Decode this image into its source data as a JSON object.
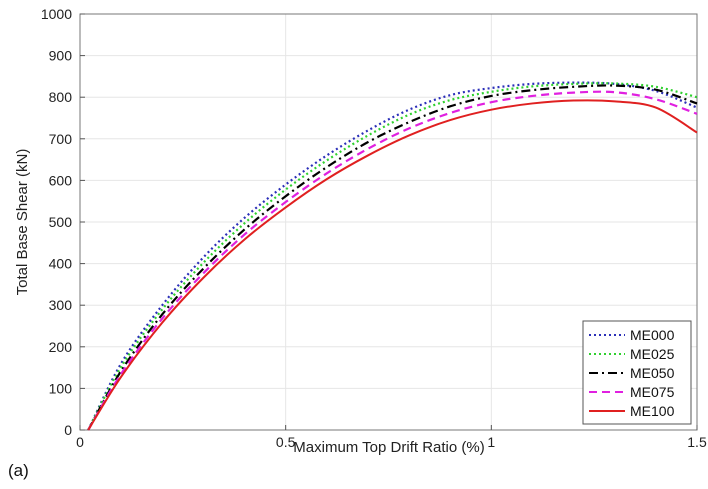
{
  "panel_label": "(a)",
  "chart_data": {
    "type": "line",
    "title": "",
    "xlabel": "Maximum Top Drift Ratio (%)",
    "ylabel": "Total Base Shear (kN)",
    "xlim": [
      0,
      1.5
    ],
    "ylim": [
      0,
      1000
    ],
    "x_ticks": [
      0,
      0.5,
      1,
      1.5
    ],
    "x_tick_labels": [
      "0",
      "0.5",
      "1",
      "1.5"
    ],
    "y_ticks": [
      0,
      100,
      200,
      300,
      400,
      500,
      600,
      700,
      800,
      900,
      1000
    ],
    "y_tick_labels": [
      "0",
      "100",
      "200",
      "300",
      "400",
      "500",
      "600",
      "700",
      "800",
      "900",
      "1000"
    ],
    "grid": true,
    "legend_position": "bottom-right",
    "series": [
      {
        "name": "ME000",
        "color": "#2b2fb8",
        "style": "dotted",
        "x": [
          0.02,
          0.1,
          0.2,
          0.3,
          0.4,
          0.5,
          0.6,
          0.7,
          0.8,
          0.9,
          1.0,
          1.1,
          1.2,
          1.3,
          1.4,
          1.5
        ],
        "y": [
          0,
          160,
          300,
          415,
          510,
          590,
          660,
          720,
          770,
          805,
          822,
          832,
          835,
          832,
          815,
          775
        ]
      },
      {
        "name": "ME025",
        "color": "#2fd12f",
        "style": "dotted",
        "x": [
          0.02,
          0.1,
          0.2,
          0.3,
          0.4,
          0.5,
          0.6,
          0.7,
          0.8,
          0.9,
          1.0,
          1.1,
          1.2,
          1.3,
          1.4,
          1.5
        ],
        "y": [
          0,
          152,
          290,
          402,
          497,
          578,
          648,
          708,
          758,
          793,
          813,
          826,
          832,
          833,
          825,
          800
        ]
      },
      {
        "name": "ME050",
        "color": "#000000",
        "style": "dashdot",
        "x": [
          0.02,
          0.1,
          0.2,
          0.3,
          0.4,
          0.5,
          0.6,
          0.7,
          0.8,
          0.9,
          1.0,
          1.1,
          1.2,
          1.3,
          1.4,
          1.5
        ],
        "y": [
          0,
          142,
          278,
          388,
          482,
          562,
          632,
          692,
          740,
          778,
          803,
          817,
          825,
          828,
          818,
          785
        ]
      },
      {
        "name": "ME075",
        "color": "#e020e0",
        "style": "dashed",
        "x": [
          0.02,
          0.1,
          0.2,
          0.3,
          0.4,
          0.5,
          0.6,
          0.7,
          0.8,
          0.9,
          1.0,
          1.1,
          1.2,
          1.3,
          1.4,
          1.5
        ],
        "y": [
          0,
          135,
          268,
          377,
          470,
          548,
          617,
          676,
          725,
          762,
          788,
          803,
          811,
          812,
          795,
          760
        ]
      },
      {
        "name": "ME100",
        "color": "#e02020",
        "style": "solid",
        "x": [
          0.02,
          0.1,
          0.2,
          0.3,
          0.4,
          0.5,
          0.6,
          0.7,
          0.8,
          0.9,
          1.0,
          1.1,
          1.2,
          1.3,
          1.4,
          1.5
        ],
        "y": [
          0,
          128,
          258,
          366,
          458,
          535,
          603,
          660,
          708,
          745,
          770,
          785,
          792,
          790,
          775,
          715
        ]
      }
    ]
  }
}
